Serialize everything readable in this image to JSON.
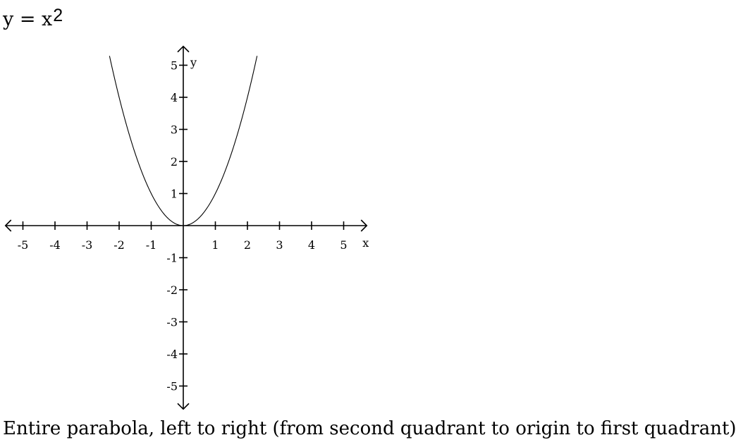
{
  "equation": {
    "base": "y = x",
    "exponent": "2"
  },
  "caption": "Entire parabola, left to right (from second quadrant to origin to first quadrant)",
  "chart_data": {
    "type": "line",
    "function": "y = x^2",
    "xlabel": "x",
    "ylabel": "y",
    "xlim": [
      -5.5,
      5.5
    ],
    "ylim": [
      -5.5,
      5.5
    ],
    "xticks": [
      -5,
      -4,
      -3,
      -2,
      -1,
      1,
      2,
      3,
      4,
      5
    ],
    "yticks": [
      -5,
      -4,
      -3,
      -2,
      -1,
      1,
      2,
      3,
      4,
      5
    ],
    "xtick_labels": [
      "-5",
      "-4",
      "-3",
      "-2",
      "-1",
      "1",
      "2",
      "3",
      "4",
      "5"
    ],
    "ytick_labels": [
      "-5",
      "-4",
      "-3",
      "-2",
      "-1",
      "1",
      "2",
      "3",
      "4",
      "5"
    ],
    "grid": false,
    "axis_arrows": true,
    "series": [
      {
        "x": [
          -2.3,
          -2,
          -1.5,
          -1,
          -0.5,
          0,
          0.5,
          1,
          1.5,
          2,
          2.3
        ],
        "y": [
          5.29,
          4,
          2.25,
          1,
          0.25,
          0,
          0.25,
          1,
          2.25,
          4,
          5.29
        ],
        "color": "#000000"
      }
    ]
  }
}
